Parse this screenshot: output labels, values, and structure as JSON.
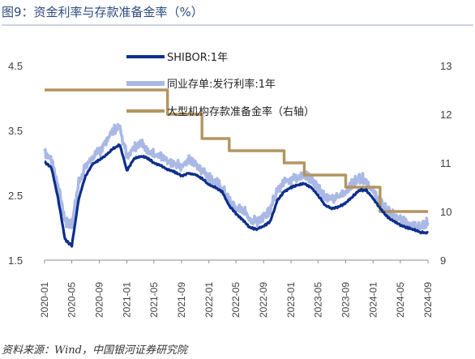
{
  "title": "图9：资金利率与存款准备金率（%）",
  "source": "资料来源：Wind，中国银河证券研究院",
  "colors": {
    "title": "#2c4a7e",
    "shibor": "#0d2f8c",
    "issue_rate": "#a9b8e4",
    "rrr": "#b49560",
    "title_rule": "#9aa9c7"
  },
  "chart_data": {
    "type": "line",
    "title": "资金利率与存款准备金率（%）",
    "x_ticks": [
      "2020-01",
      "2020-05",
      "2020-09",
      "2021-01",
      "2021-05",
      "2021-09",
      "2022-01",
      "2022-05",
      "2022-09",
      "2023-01",
      "2023-05",
      "2023-09",
      "2024-01",
      "2024-05",
      "2024-09"
    ],
    "y_left": {
      "ticks": [
        "1.5",
        "2.5",
        "3.5",
        "4.5"
      ],
      "range": [
        1.5,
        4.5
      ]
    },
    "y_right": {
      "ticks": [
        "9",
        "10",
        "11",
        "12",
        "13"
      ],
      "range": [
        9,
        13
      ]
    },
    "legend_placement": "top-center",
    "series": [
      {
        "name": "SHIBOR:1年",
        "axis": "left",
        "points": [
          [
            "2020-01",
            3.02
          ],
          [
            "2020-02",
            2.92
          ],
          [
            "2020-03",
            2.45
          ],
          [
            "2020-04",
            1.82
          ],
          [
            "2020-05",
            1.72
          ],
          [
            "2020-06",
            2.45
          ],
          [
            "2020-07",
            2.8
          ],
          [
            "2020-08",
            2.98
          ],
          [
            "2020-09",
            3.05
          ],
          [
            "2020-10",
            3.12
          ],
          [
            "2020-11",
            3.22
          ],
          [
            "2020-12",
            3.28
          ],
          [
            "2021-01",
            2.88
          ],
          [
            "2021-02",
            3.06
          ],
          [
            "2021-03",
            3.1
          ],
          [
            "2021-04",
            3.08
          ],
          [
            "2021-05",
            3.0
          ],
          [
            "2021-06",
            2.96
          ],
          [
            "2021-07",
            2.9
          ],
          [
            "2021-08",
            2.86
          ],
          [
            "2021-09",
            2.8
          ],
          [
            "2021-10",
            2.84
          ],
          [
            "2021-11",
            2.82
          ],
          [
            "2021-12",
            2.76
          ],
          [
            "2022-01",
            2.66
          ],
          [
            "2022-02",
            2.62
          ],
          [
            "2022-03",
            2.55
          ],
          [
            "2022-04",
            2.34
          ],
          [
            "2022-05",
            2.22
          ],
          [
            "2022-06",
            2.12
          ],
          [
            "2022-07",
            2.0
          ],
          [
            "2022-08",
            1.98
          ],
          [
            "2022-09",
            2.02
          ],
          [
            "2022-10",
            2.1
          ],
          [
            "2022-11",
            2.42
          ],
          [
            "2022-12",
            2.56
          ],
          [
            "2023-01",
            2.62
          ],
          [
            "2023-02",
            2.66
          ],
          [
            "2023-03",
            2.68
          ],
          [
            "2023-04",
            2.62
          ],
          [
            "2023-05",
            2.5
          ],
          [
            "2023-06",
            2.35
          ],
          [
            "2023-07",
            2.3
          ],
          [
            "2023-08",
            2.32
          ],
          [
            "2023-09",
            2.38
          ],
          [
            "2023-10",
            2.48
          ],
          [
            "2023-11",
            2.58
          ],
          [
            "2023-12",
            2.58
          ],
          [
            "2024-01",
            2.45
          ],
          [
            "2024-02",
            2.3
          ],
          [
            "2024-03",
            2.18
          ],
          [
            "2024-04",
            2.1
          ],
          [
            "2024-05",
            2.04
          ],
          [
            "2024-06",
            2.0
          ],
          [
            "2024-07",
            1.97
          ],
          [
            "2024-08",
            1.93
          ],
          [
            "2024-09",
            1.92
          ]
        ]
      },
      {
        "name": "同业存单:发行利率:1年",
        "axis": "left",
        "points": [
          [
            "2020-01",
            3.18
          ],
          [
            "2020-02",
            3.05
          ],
          [
            "2020-03",
            2.65
          ],
          [
            "2020-04",
            2.1
          ],
          [
            "2020-05",
            2.05
          ],
          [
            "2020-06",
            2.7
          ],
          [
            "2020-07",
            2.95
          ],
          [
            "2020-08",
            3.08
          ],
          [
            "2020-09",
            3.18
          ],
          [
            "2020-10",
            3.34
          ],
          [
            "2020-11",
            3.5
          ],
          [
            "2020-12",
            3.55
          ],
          [
            "2021-01",
            3.1
          ],
          [
            "2021-02",
            3.25
          ],
          [
            "2021-03",
            3.3
          ],
          [
            "2021-04",
            3.22
          ],
          [
            "2021-05",
            3.12
          ],
          [
            "2021-06",
            3.08
          ],
          [
            "2021-07",
            3.02
          ],
          [
            "2021-08",
            2.98
          ],
          [
            "2021-09",
            2.95
          ],
          [
            "2021-10",
            3.05
          ],
          [
            "2021-11",
            3.0
          ],
          [
            "2021-12",
            2.9
          ],
          [
            "2022-01",
            2.78
          ],
          [
            "2022-02",
            2.7
          ],
          [
            "2022-03",
            2.6
          ],
          [
            "2022-04",
            2.42
          ],
          [
            "2022-05",
            2.3
          ],
          [
            "2022-06",
            2.28
          ],
          [
            "2022-07",
            2.12
          ],
          [
            "2022-08",
            2.1
          ],
          [
            "2022-09",
            2.18
          ],
          [
            "2022-10",
            2.3
          ],
          [
            "2022-11",
            2.56
          ],
          [
            "2022-12",
            2.72
          ],
          [
            "2023-01",
            2.76
          ],
          [
            "2023-02",
            2.8
          ],
          [
            "2023-03",
            2.82
          ],
          [
            "2023-04",
            2.74
          ],
          [
            "2023-05",
            2.62
          ],
          [
            "2023-06",
            2.48
          ],
          [
            "2023-07",
            2.44
          ],
          [
            "2023-08",
            2.48
          ],
          [
            "2023-09",
            2.56
          ],
          [
            "2023-10",
            2.68
          ],
          [
            "2023-11",
            2.78
          ],
          [
            "2023-12",
            2.72
          ],
          [
            "2024-01",
            2.55
          ],
          [
            "2024-02",
            2.4
          ],
          [
            "2024-03",
            2.28
          ],
          [
            "2024-04",
            2.18
          ],
          [
            "2024-05",
            2.12
          ],
          [
            "2024-06",
            2.08
          ],
          [
            "2024-07",
            2.04
          ],
          [
            "2024-08",
            2.02
          ],
          [
            "2024-09",
            2.08
          ]
        ]
      },
      {
        "name": "大型机构存款准备金率（右轴）",
        "axis": "right",
        "step": true,
        "points": [
          [
            "2020-01",
            12.5
          ],
          [
            "2021-07",
            12.0
          ],
          [
            "2021-12",
            11.5
          ],
          [
            "2022-04",
            11.25
          ],
          [
            "2022-12",
            11.0
          ],
          [
            "2023-03",
            10.75
          ],
          [
            "2023-09",
            10.5
          ],
          [
            "2024-02",
            10.0
          ],
          [
            "2024-09",
            10.0
          ]
        ]
      }
    ]
  }
}
